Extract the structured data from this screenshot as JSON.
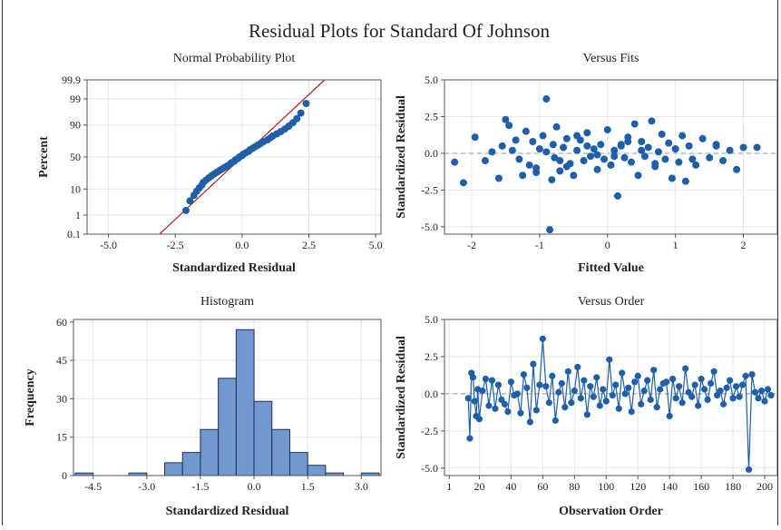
{
  "main_title": "Residual Plots for Standard Of Johnson",
  "colors": {
    "points": "#1f5fa8",
    "line": "#b01e1e",
    "bars": "#7199cf",
    "bar_stroke": "#1f2f55",
    "zero": "#8a9bb0",
    "grid": "#e6e6e6"
  },
  "chart_data": [
    {
      "type": "scatter",
      "title": "Normal Probability Plot",
      "xlabel": "Standardized Residual",
      "ylabel": "Percent",
      "xlim": [
        -5.8,
        5.2
      ],
      "xticks": [
        -5.0,
        -2.5,
        0.0,
        2.5,
        5.0
      ],
      "xtick_labels": [
        "-5.0",
        "-2.5",
        "0.0",
        "2.5",
        "5.0"
      ],
      "yticks": [
        0.1,
        1,
        10,
        50,
        90,
        99,
        99.9
      ],
      "ytick_labels": [
        "0.1",
        "1",
        "10",
        "50",
        "90",
        "99",
        "99.9"
      ],
      "y_scale": "normal-probability",
      "fit_line": {
        "slope": 1,
        "intercept": 0
      },
      "points_from": "standardized_residuals",
      "grid": true
    },
    {
      "type": "scatter",
      "title": "Versus Fits",
      "xlabel": "Fitted Value",
      "ylabel": "Standardized Residual",
      "xlim": [
        -2.4,
        2.5
      ],
      "ylim": [
        -5.5,
        5.0
      ],
      "xticks": [
        -2,
        -1,
        0,
        1,
        2
      ],
      "yticks": [
        -5.0,
        -2.5,
        0.0,
        2.5,
        5.0
      ],
      "ytick_labels": [
        "-5.0",
        "-2.5",
        "0.0",
        "2.5",
        "5.0"
      ],
      "reference_line_y": 0,
      "grid": true,
      "x": [
        -2.25,
        -2.12,
        -1.95,
        -1.7,
        -1.6,
        -1.55,
        -1.5,
        -1.45,
        -1.4,
        -1.3,
        -1.25,
        -1.2,
        -1.15,
        -1.1,
        -1.05,
        -1.0,
        -0.95,
        -0.9,
        -0.85,
        -0.82,
        -0.8,
        -0.78,
        -0.75,
        -0.7,
        -0.65,
        -0.6,
        -0.55,
        -0.5,
        -0.45,
        -0.4,
        -0.35,
        -0.3,
        -0.25,
        -0.2,
        -0.15,
        -0.1,
        -0.05,
        0.0,
        0.05,
        0.1,
        0.15,
        0.2,
        0.25,
        0.3,
        0.35,
        0.4,
        0.45,
        0.5,
        0.55,
        0.6,
        0.65,
        0.7,
        0.75,
        0.8,
        0.85,
        0.9,
        0.95,
        1.0,
        1.05,
        1.1,
        1.15,
        1.2,
        1.3,
        1.4,
        1.5,
        1.6,
        1.7,
        1.8,
        1.9,
        2.0,
        2.2,
        -1.8,
        -1.35,
        -1.05,
        -0.9,
        -0.6,
        -0.3,
        0.1,
        0.3,
        0.5,
        0.7,
        1.0,
        1.25,
        1.6,
        -0.15,
        0.2,
        -0.45,
        -0.7
      ],
      "y": [
        -0.6,
        -2.0,
        1.1,
        0.1,
        -1.7,
        0.5,
        2.3,
        1.9,
        0.2,
        -0.4,
        -1.5,
        1.5,
        -0.8,
        0.8,
        -1.0,
        0.3,
        1.2,
        3.7,
        -5.2,
        -1.8,
        0.6,
        -0.3,
        1.8,
        -1.2,
        0.4,
        1.0,
        -0.7,
        -1.5,
        0.2,
        0.9,
        -0.5,
        1.4,
        -0.2,
        0.3,
        -1.1,
        0.6,
        -0.4,
        1.6,
        -0.8,
        0.2,
        -2.9,
        0.5,
        -0.3,
        1.1,
        -0.6,
        2.0,
        -1.5,
        0.8,
        -0.2,
        0.4,
        2.2,
        -0.9,
        0.1,
        1.3,
        -0.4,
        0.7,
        -1.7,
        0.3,
        -0.6,
        1.2,
        -1.9,
        0.5,
        -0.8,
        1.0,
        -0.3,
        0.6,
        -0.5,
        0.2,
        -1.1,
        0.4,
        0.4,
        -0.5,
        0.9,
        -1.3,
        0.1,
        -0.9,
        0.5,
        -0.2,
        0.8,
        0.2,
        -0.7,
        0.3,
        -0.4,
        0.5,
        -0.1,
        0.6,
        1.2,
        -0.5
      ],
      "standardized_residuals": [
        -2.1,
        -1.95,
        -1.8,
        -1.7,
        -1.6,
        -1.5,
        -1.45,
        -1.35,
        -1.25,
        -1.15,
        -1.05,
        -0.95,
        -0.85,
        -0.75,
        -0.65,
        -0.55,
        -0.45,
        -0.4,
        -0.3,
        -0.25,
        -0.15,
        -0.1,
        0.0,
        0.05,
        0.15,
        0.25,
        0.3,
        0.4,
        0.5,
        0.6,
        0.7,
        0.8,
        0.95,
        1.05,
        1.15,
        1.3,
        1.45,
        1.6,
        1.75,
        1.9,
        2.05,
        2.2,
        2.4
      ]
    },
    {
      "type": "bar",
      "title": "Histogram",
      "xlabel": "Standardized Residual",
      "ylabel": "Frequency",
      "bin_width": 0.5,
      "bin_centers": [
        -4.75,
        -4.25,
        -3.75,
        -3.25,
        -2.75,
        -2.25,
        -1.75,
        -1.25,
        -0.75,
        -0.25,
        0.25,
        0.75,
        1.25,
        1.75,
        2.25,
        2.75,
        3.25
      ],
      "values": [
        1,
        0,
        0,
        1,
        0,
        5,
        9,
        18,
        38,
        57,
        29,
        18,
        9,
        4,
        1,
        0,
        1
      ],
      "xlim": [
        -5.05,
        3.55
      ],
      "ylim": [
        0,
        61
      ],
      "xticks": [
        -4.5,
        -3.0,
        -1.5,
        0.0,
        1.5,
        3.0
      ],
      "xtick_labels": [
        "-4.5",
        "-3.0",
        "-1.5",
        "0.0",
        "1.5",
        "3.0"
      ],
      "yticks": [
        0,
        15,
        30,
        45,
        60
      ],
      "grid": true
    },
    {
      "type": "line",
      "title": "Versus Order",
      "xlabel": "Observation Order",
      "ylabel": "Standardized Residual",
      "xlim": [
        -2,
        208
      ],
      "ylim": [
        -5.5,
        5.0
      ],
      "xticks": [
        1,
        20,
        40,
        60,
        80,
        100,
        120,
        140,
        160,
        180,
        200
      ],
      "yticks": [
        -5.0,
        -2.5,
        0.0,
        2.5,
        5.0
      ],
      "ytick_labels": [
        "-5.0",
        "-2.5",
        "0.0",
        "2.5",
        "5.0"
      ],
      "reference_line_y": 0,
      "grid": true,
      "x": [
        13,
        14,
        15,
        16,
        17,
        18,
        19,
        20,
        22,
        24,
        26,
        28,
        30,
        32,
        34,
        36,
        38,
        40,
        42,
        44,
        46,
        48,
        50,
        52,
        54,
        56,
        58,
        60,
        62,
        64,
        66,
        68,
        70,
        72,
        74,
        76,
        78,
        80,
        82,
        84,
        86,
        88,
        90,
        92,
        94,
        96,
        98,
        100,
        102,
        104,
        106,
        108,
        110,
        112,
        114,
        116,
        118,
        120,
        122,
        124,
        126,
        128,
        130,
        132,
        134,
        136,
        138,
        140,
        142,
        144,
        146,
        148,
        150,
        152,
        154,
        156,
        158,
        160,
        162,
        164,
        166,
        168,
        170,
        172,
        174,
        176,
        178,
        180,
        182,
        184,
        186,
        188,
        190,
        192,
        194,
        196,
        198,
        200,
        202,
        204
      ],
      "y": [
        -0.3,
        -3.0,
        1.4,
        1.1,
        -0.5,
        -1.5,
        0.3,
        -1.7,
        0.2,
        1.0,
        -0.8,
        0.9,
        -1.0,
        0.6,
        -0.4,
        -0.7,
        -1.2,
        0.8,
        -0.1,
        0.0,
        -1.3,
        1.3,
        0.4,
        -1.9,
        2.0,
        -1.1,
        0.6,
        3.7,
        0.5,
        -0.6,
        1.2,
        -1.8,
        0.1,
        0.7,
        -0.9,
        1.5,
        -0.6,
        0.2,
        1.8,
        -0.3,
        0.9,
        -1.4,
        0.5,
        -0.2,
        1.1,
        -0.8,
        0.3,
        -0.5,
        2.3,
        -0.1,
        0.6,
        -1.0,
        1.4,
        0.0,
        0.4,
        -1.2,
        0.8,
        1.2,
        -0.7,
        0.2,
        0.9,
        -0.4,
        1.6,
        -0.9,
        0.3,
        0.7,
        0.8,
        -1.5,
        1.0,
        -0.3,
        0.5,
        -0.6,
        1.7,
        0.1,
        -0.2,
        0.6,
        -0.8,
        1.0,
        0.3,
        -0.4,
        0.7,
        1.5,
        -0.1,
        0.2,
        -0.7,
        0.4,
        0.9,
        -0.3,
        0.5,
        -0.2,
        0.6,
        1.2,
        -5.1,
        1.3,
        0.1,
        -0.3,
        0.2,
        -0.5,
        0.3,
        -0.1
      ]
    }
  ]
}
